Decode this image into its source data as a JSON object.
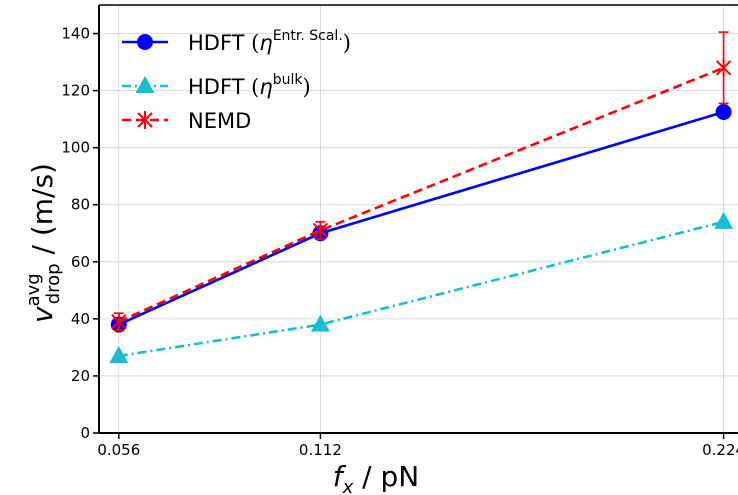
{
  "chart_data": {
    "type": "line",
    "title": "",
    "xlabel": "f_x / pN",
    "xlabel_parts": {
      "var": "f",
      "sub": "x",
      "unit": "/ pN"
    },
    "ylabel": "v_drop^avg / (m/s)",
    "ylabel_parts": {
      "var": "v",
      "sup": "avg",
      "sub": "drop",
      "unit": "/ (m/s)"
    },
    "x": [
      0.056,
      0.112,
      0.224
    ],
    "x_tick_labels": [
      "0.056",
      "0.112",
      "0.224"
    ],
    "y_ticks": [
      0,
      20,
      40,
      60,
      80,
      100,
      120,
      140
    ],
    "ylim": [
      0,
      150
    ],
    "xlim": [
      0.0505,
      0.228
    ],
    "grid": true,
    "legend_position": "top-left",
    "series": [
      {
        "name": "HDFT (η^Entr. Scal.)",
        "name_parts": {
          "prefix": "HDFT",
          "sym": "η",
          "sup": "Entr. Scal."
        },
        "values": [
          38,
          70,
          112.5
        ],
        "color": "#0000ff",
        "marker": "circle",
        "line_style": "solid"
      },
      {
        "name": "HDFT (η^bulk)",
        "name_parts": {
          "prefix": "HDFT",
          "sym": "η",
          "sup": "bulk"
        },
        "values": [
          27,
          38,
          74
        ],
        "color": "#17becf",
        "marker": "triangle",
        "line_style": "dashdot"
      },
      {
        "name": "NEMD",
        "name_parts": {
          "prefix": "NEMD"
        },
        "values": [
          39,
          71,
          128
        ],
        "errors": [
          3,
          3,
          12.5
        ],
        "color": "#ff0000",
        "marker": "x",
        "line_style": "dashed"
      }
    ]
  }
}
